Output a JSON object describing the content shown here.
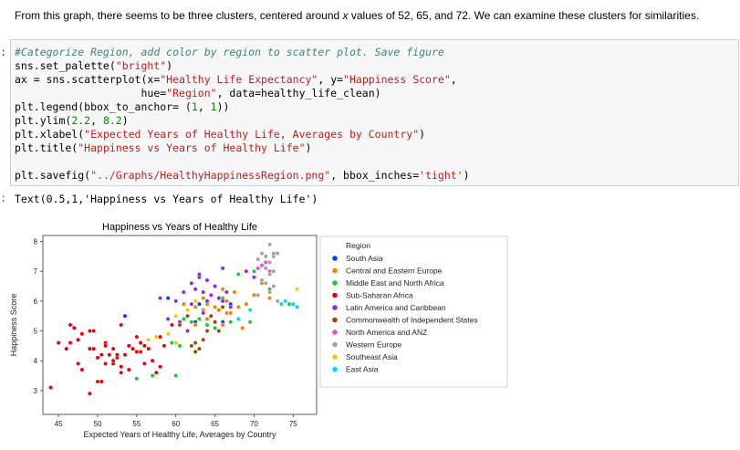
{
  "markdown": {
    "text_before": "From this graph, there seems to be three clusters, centered around ",
    "text_x": "x",
    "text_after": " values of 52, 65, and 72. We can examine these clusters for similarities."
  },
  "input_cell": {
    "prompt": ":",
    "lines": [
      [
        {
          "t": "#Categorize Region, add color by region to scatter plot. Save figure",
          "c": "cm"
        }
      ],
      [
        {
          "t": "sns.set_palette(",
          "c": ""
        },
        {
          "t": "\"bright\"",
          "c": "st"
        },
        {
          "t": ")",
          "c": ""
        }
      ],
      [
        {
          "t": "ax = sns.scatterplot(x=",
          "c": ""
        },
        {
          "t": "\"Healthy Life Expectancy\"",
          "c": "st"
        },
        {
          "t": ", y=",
          "c": ""
        },
        {
          "t": "\"Happiness Score\"",
          "c": "st"
        },
        {
          "t": ",",
          "c": ""
        }
      ],
      [
        {
          "t": "                    hue=",
          "c": ""
        },
        {
          "t": "\"Region\"",
          "c": "st"
        },
        {
          "t": ", data=healthy_life_clean)",
          "c": ""
        }
      ],
      [
        {
          "t": "plt.legend(bbox_to_anchor= (",
          "c": ""
        },
        {
          "t": "1",
          "c": "nm"
        },
        {
          "t": ", ",
          "c": ""
        },
        {
          "t": "1",
          "c": "nm"
        },
        {
          "t": "))",
          "c": ""
        }
      ],
      [
        {
          "t": "plt.ylim(",
          "c": ""
        },
        {
          "t": "2.2",
          "c": "nm"
        },
        {
          "t": ", ",
          "c": ""
        },
        {
          "t": "8.2",
          "c": "nm"
        },
        {
          "t": ")",
          "c": ""
        }
      ],
      [
        {
          "t": "plt.xlabel(",
          "c": ""
        },
        {
          "t": "\"Expected Years of Healthy Life, Averages by Country\"",
          "c": "st"
        },
        {
          "t": ")",
          "c": ""
        }
      ],
      [
        {
          "t": "plt.title(",
          "c": ""
        },
        {
          "t": "\"Happiness vs Years of Healthy Life\"",
          "c": "st"
        },
        {
          "t": ")",
          "c": ""
        }
      ],
      [
        {
          "t": "",
          "c": ""
        }
      ],
      [
        {
          "t": "plt.savefig(",
          "c": ""
        },
        {
          "t": "\"../Graphs/HealthyHappinessRegion.png\"",
          "c": "st"
        },
        {
          "t": ", bbox_inches=",
          "c": ""
        },
        {
          "t": "'tight'",
          "c": "st"
        },
        {
          "t": ")",
          "c": ""
        }
      ]
    ]
  },
  "output_cell": {
    "prompt": ":",
    "text": "Text(0.5,1,'Happiness vs Years of Healthy Life')"
  },
  "chart_data": {
    "type": "scatter",
    "title": "Happiness vs Years of Healthy Life",
    "xlabel": "Expected Years of Healthy Life, Averages by Country",
    "ylabel": "Happiness Score",
    "xlim": [
      43,
      78
    ],
    "ylim": [
      2.2,
      8.2
    ],
    "xticks": [
      45,
      50,
      55,
      60,
      65,
      70,
      75
    ],
    "yticks": [
      3,
      4,
      5,
      6,
      7,
      8
    ],
    "grid": false,
    "legend_title": "Region",
    "legend_position": "outside-right",
    "series": [
      {
        "name": "South Asia",
        "color": "#023eff",
        "points": [
          [
            53.5,
            5.5
          ],
          [
            59,
            6.1
          ],
          [
            62.5,
            5.3
          ],
          [
            67,
            5.9
          ],
          [
            66,
            5.3
          ],
          [
            63,
            5.9
          ]
        ]
      },
      {
        "name": "Central and Eastern Europe",
        "color": "#ff7c00",
        "points": [
          [
            61,
            5.9
          ],
          [
            62.5,
            5.8
          ],
          [
            63.5,
            6.1
          ],
          [
            64.5,
            5.5
          ],
          [
            65.5,
            5.7
          ],
          [
            66.5,
            6.0
          ],
          [
            67,
            5.6
          ],
          [
            68,
            5.8
          ],
          [
            63.5,
            5.7
          ],
          [
            64,
            5.4
          ],
          [
            65,
            5.8
          ],
          [
            66,
            5.2
          ],
          [
            67.5,
            6.3
          ],
          [
            69,
            5.9
          ],
          [
            70,
            6.2
          ],
          [
            71,
            6.6
          ],
          [
            72,
            6.1
          ],
          [
            66,
            6.4
          ],
          [
            64,
            5.9
          ],
          [
            62.5,
            5.2
          ],
          [
            68.5,
            5.1
          ],
          [
            66.5,
            5.6
          ]
        ]
      },
      {
        "name": "Middle East and North Africa",
        "color": "#1ac938",
        "points": [
          [
            55,
            3.4
          ],
          [
            57,
            3.5
          ],
          [
            60,
            3.5
          ],
          [
            60.5,
            4.5
          ],
          [
            59.5,
            4.6
          ],
          [
            61,
            5.4
          ],
          [
            62,
            5.3
          ],
          [
            63,
            5.4
          ],
          [
            64,
            5.2
          ],
          [
            65,
            5.1
          ],
          [
            66,
            6.1
          ],
          [
            67,
            5.3
          ],
          [
            68,
            6.9
          ],
          [
            72,
            6.4
          ],
          [
            69.5,
            5.3
          ],
          [
            70,
            7.0
          ],
          [
            73,
            6.0
          ],
          [
            74.5,
            5.9
          ]
        ]
      },
      {
        "name": "Sub-Saharan Africa",
        "color": "#e8000b",
        "points": [
          [
            44,
            3.1
          ],
          [
            46,
            4.4
          ],
          [
            46.5,
            4.6
          ],
          [
            47,
            5.1
          ],
          [
            47.5,
            4.7
          ],
          [
            48,
            3.7
          ],
          [
            48,
            4.9
          ],
          [
            49,
            4.4
          ],
          [
            49.5,
            5.0
          ],
          [
            49.5,
            4.4
          ],
          [
            50,
            4.1
          ],
          [
            50,
            3.3
          ],
          [
            50.5,
            4.2
          ],
          [
            51,
            3.9
          ],
          [
            51,
            4.6
          ],
          [
            51.5,
            4.2
          ],
          [
            52,
            3.9
          ],
          [
            52,
            4.4
          ],
          [
            52.5,
            4.1
          ],
          [
            53,
            3.8
          ],
          [
            53,
            5.2
          ],
          [
            53.5,
            4.2
          ],
          [
            54,
            4.5
          ],
          [
            54.5,
            4.4
          ],
          [
            55,
            4.8
          ],
          [
            55,
            4.3
          ],
          [
            55.5,
            4.6
          ],
          [
            56,
            4.5
          ],
          [
            56,
            3.9
          ],
          [
            56.5,
            4.4
          ],
          [
            57,
            4.0
          ],
          [
            57.5,
            3.6
          ],
          [
            58,
            3.8
          ],
          [
            58,
            4.8
          ],
          [
            47.5,
            3.9
          ],
          [
            49,
            2.9
          ],
          [
            52,
            4.0
          ],
          [
            54,
            3.7
          ],
          [
            46.5,
            5.2
          ],
          [
            49,
            5.0
          ],
          [
            58.5,
            4.5
          ],
          [
            59.5,
            5.2
          ],
          [
            45,
            4.6
          ],
          [
            52.5,
            4.2
          ],
          [
            55.5,
            4.3
          ],
          [
            50.5,
            3.3
          ],
          [
            51,
            4.5
          ],
          [
            53,
            3.6
          ]
        ]
      },
      {
        "name": "Latin America and Caribbean",
        "color": "#8b2be2",
        "points": [
          [
            58,
            6.1
          ],
          [
            59,
            5.4
          ],
          [
            60,
            6.0
          ],
          [
            61,
            6.3
          ],
          [
            62,
            6.6
          ],
          [
            62.5,
            6.4
          ],
          [
            63,
            6.8
          ],
          [
            63.5,
            6.3
          ],
          [
            64,
            6.7
          ],
          [
            64.5,
            6.2
          ],
          [
            65,
            6.5
          ],
          [
            65.5,
            6.1
          ],
          [
            66,
            6.0
          ],
          [
            66.5,
            6.3
          ],
          [
            67,
            5.8
          ],
          [
            64,
            6.0
          ],
          [
            63.5,
            5.6
          ],
          [
            62,
            5.9
          ],
          [
            61.5,
            5.0
          ],
          [
            60.5,
            5.3
          ],
          [
            66,
            7.1
          ],
          [
            69,
            7.0
          ],
          [
            70,
            6.8
          ],
          [
            70.5,
            7.1
          ],
          [
            63,
            6.9
          ]
        ]
      },
      {
        "name": "Commonwealth of Independent States",
        "color": "#9f4800",
        "points": [
          [
            60.5,
            5.2
          ],
          [
            61.5,
            5.5
          ],
          [
            62,
            4.5
          ],
          [
            62.5,
            4.3
          ],
          [
            63,
            4.4
          ],
          [
            63.5,
            4.7
          ],
          [
            64,
            5.0
          ],
          [
            64.5,
            5.5
          ],
          [
            65,
            5.3
          ],
          [
            65.5,
            5.0
          ],
          [
            66,
            5.8
          ],
          [
            62.5,
            4.6
          ]
        ]
      },
      {
        "name": "North America and ANZ",
        "color": "#f14cc1",
        "points": [
          [
            71,
            7.2
          ],
          [
            71.5,
            7.3
          ],
          [
            72,
            7.0
          ],
          [
            70.5,
            7.1
          ]
        ]
      },
      {
        "name": "Western Europe",
        "color": "#a3a3a3",
        "points": [
          [
            70.5,
            7.4
          ],
          [
            71,
            7.6
          ],
          [
            71.5,
            7.5
          ],
          [
            72,
            7.3
          ],
          [
            72.5,
            7.5
          ],
          [
            73,
            7.6
          ],
          [
            71.5,
            7.1
          ],
          [
            72,
            6.9
          ],
          [
            72.5,
            7.0
          ],
          [
            71,
            6.7
          ],
          [
            71.5,
            6.6
          ],
          [
            72,
            6.3
          ],
          [
            72.5,
            6.5
          ],
          [
            73,
            6.0
          ],
          [
            70.5,
            6.2
          ],
          [
            72,
            7.9
          ],
          [
            72.5,
            7.6
          ]
        ]
      },
      {
        "name": "Southeast Asia",
        "color": "#ffc400",
        "points": [
          [
            56.5,
            4.7
          ],
          [
            57.5,
            4.8
          ],
          [
            59,
            4.9
          ],
          [
            60,
            5.5
          ],
          [
            61.5,
            5.7
          ],
          [
            62.5,
            6.0
          ],
          [
            75.5,
            6.4
          ],
          [
            60,
            4.6
          ]
        ]
      },
      {
        "name": "East Asia",
        "color": "#00d7ff",
        "points": [
          [
            73.5,
            5.9
          ],
          [
            75,
            5.9
          ],
          [
            74,
            6.0
          ],
          [
            75.5,
            5.8
          ],
          [
            68,
            5.4
          ],
          [
            69.5,
            5.7
          ]
        ]
      }
    ]
  }
}
